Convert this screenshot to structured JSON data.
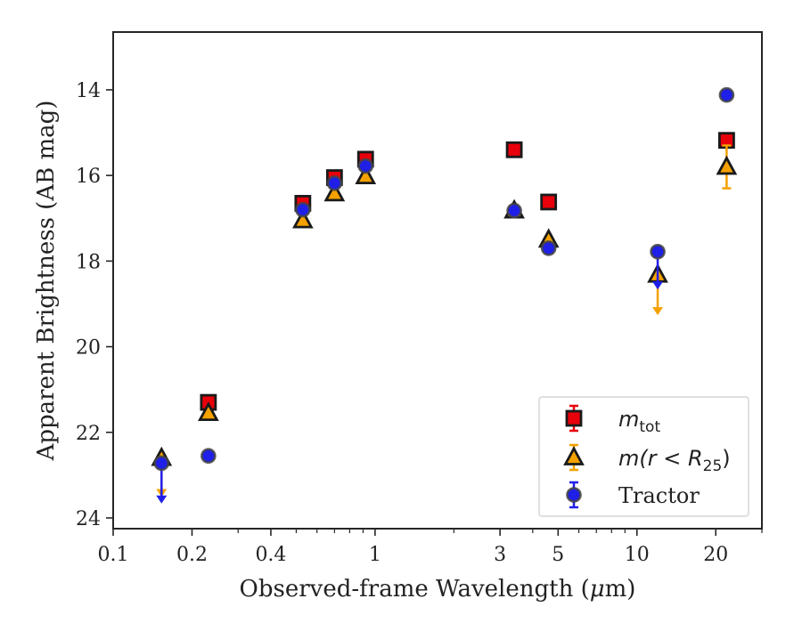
{
  "chart_data": {
    "type": "scatter",
    "xlabel_prefix": "Observed-frame Wavelength (",
    "xlabel_unit_mu": "μ",
    "xlabel_unit_rest": "m)",
    "ylabel": "Apparent Brightness (AB mag)",
    "xscale": "log",
    "xlim": [
      0.1,
      30
    ],
    "ylim": [
      24.25,
      12.65
    ],
    "y_inverted": true,
    "x_ticks": [
      0.1,
      0.2,
      0.4,
      1,
      3,
      5,
      10,
      20
    ],
    "x_tick_labels": [
      "0.1",
      "0.2",
      "0.4",
      "1",
      "3",
      "5",
      "10",
      "20"
    ],
    "y_ticks": [
      14,
      16,
      18,
      20,
      22,
      24
    ],
    "y_tick_labels": [
      "14",
      "16",
      "18",
      "20",
      "22",
      "24"
    ],
    "grid": false,
    "legend_position": "lower-right",
    "colors": {
      "mtot": "#e8000b",
      "mr25": "#f5a100",
      "tractor": "#1f1fe8",
      "edge": "#1a1a1a"
    },
    "series": [
      {
        "key": "mtot",
        "legend_main": "m",
        "legend_sub": "tot",
        "marker": "square",
        "points": [
          {
            "x": 0.231,
            "y": 21.3,
            "err": 0.1
          },
          {
            "x": 0.53,
            "y": 16.65,
            "err": 0.08
          },
          {
            "x": 0.7,
            "y": 16.05,
            "err": 0.08
          },
          {
            "x": 0.92,
            "y": 15.62,
            "err": 0.08
          },
          {
            "x": 3.4,
            "y": 15.4,
            "err": 0.05
          },
          {
            "x": 4.6,
            "y": 16.62,
            "err": 0.05
          },
          {
            "x": 22.0,
            "y": 15.18,
            "err": 0.05
          }
        ]
      },
      {
        "key": "mr25",
        "legend_main": "m(r < R",
        "legend_sub": "25",
        "legend_close": ")",
        "marker": "triangle",
        "points": [
          {
            "x": 0.153,
            "y": 22.6,
            "upper_limit_to": 23.45
          },
          {
            "x": 0.231,
            "y": 21.55,
            "err": 0.05
          },
          {
            "x": 0.53,
            "y": 17.05,
            "err": 0.05
          },
          {
            "x": 0.7,
            "y": 16.42,
            "err": 0.05
          },
          {
            "x": 0.92,
            "y": 16.02,
            "err": 0.05
          },
          {
            "x": 3.4,
            "y": 16.82,
            "err": 0.05
          },
          {
            "x": 4.6,
            "y": 17.5,
            "err": 0.05
          },
          {
            "x": 12.0,
            "y": 18.32,
            "upper_limit_to": 19.2
          },
          {
            "x": 22.0,
            "y": 15.8,
            "err": 0.5
          }
        ]
      },
      {
        "key": "tractor",
        "legend_main": "Tractor",
        "marker": "circle",
        "points": [
          {
            "x": 0.153,
            "y": 22.72,
            "upper_limit_to": 23.6
          },
          {
            "x": 0.231,
            "y": 22.55,
            "err": 0.05
          },
          {
            "x": 0.53,
            "y": 16.8,
            "err": 0.05
          },
          {
            "x": 0.7,
            "y": 16.18,
            "err": 0.05
          },
          {
            "x": 0.92,
            "y": 15.78,
            "err": 0.05
          },
          {
            "x": 3.4,
            "y": 16.82,
            "err": 0.05
          },
          {
            "x": 4.6,
            "y": 17.7,
            "err": 0.05
          },
          {
            "x": 12.0,
            "y": 17.78,
            "upper_limit_to": 18.6
          },
          {
            "x": 22.0,
            "y": 14.12,
            "err": 0.05
          }
        ]
      }
    ]
  }
}
